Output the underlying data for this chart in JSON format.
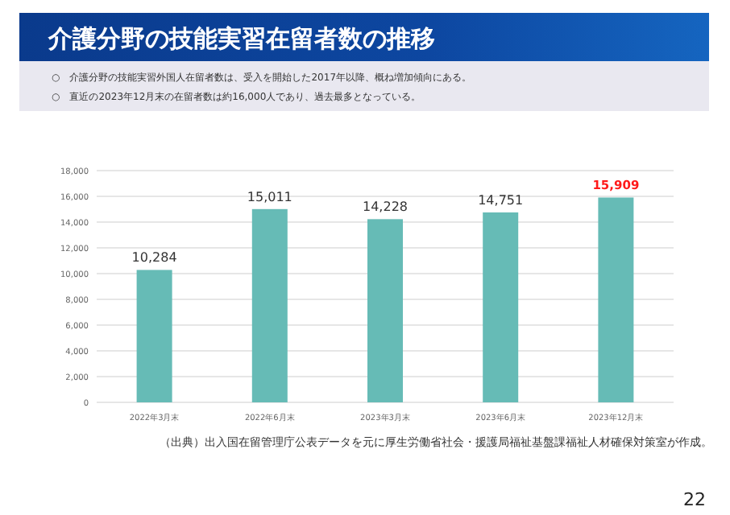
{
  "chart_data": {
    "type": "bar",
    "title": "介護分野の技能実習在留者数の推移",
    "annotations": [
      "○　介護分野の技能実習外国人在留者数は、受入を開始した2017年以降、概ね増加傾向にある。",
      "○　直近の2023年12月末の在留者数は約16,000人であり、過去最多となっている。",
      "（出典）出入国在留管理庁公表データを元に厚生労働省社会・援護局福祉基盤課福祉人材確保対策室が作成。",
      "22"
    ],
    "categories": [
      "2022年3月末",
      "2022年6月末",
      "2023年3月末",
      "2023年6月末",
      "2023年12月末"
    ],
    "values": [
      10284,
      15011,
      14228,
      14751,
      15909
    ],
    "color": "#66bbb6",
    "ylim": [
      0,
      18000
    ],
    "yticks": [
      {
        "value": 0,
        "label": "0"
      },
      {
        "value": 2000,
        "label": "2,000"
      },
      {
        "value": 4000,
        "label": "4,000"
      },
      {
        "value": 6000,
        "label": "6,000"
      },
      {
        "value": 8000,
        "label": "8,000"
      },
      {
        "value": 10000,
        "label": "10,000"
      },
      {
        "value": 12000,
        "label": "12,000"
      },
      {
        "value": 14000,
        "label": "14,000"
      },
      {
        "value": 16000,
        "label": "16,000"
      },
      {
        "value": 18000,
        "label": "18,000"
      }
    ],
    "value_labels": [
      "10,284",
      "15,011",
      "14,228",
      "14,751",
      "15,909"
    ],
    "grid": "y"
  }
}
